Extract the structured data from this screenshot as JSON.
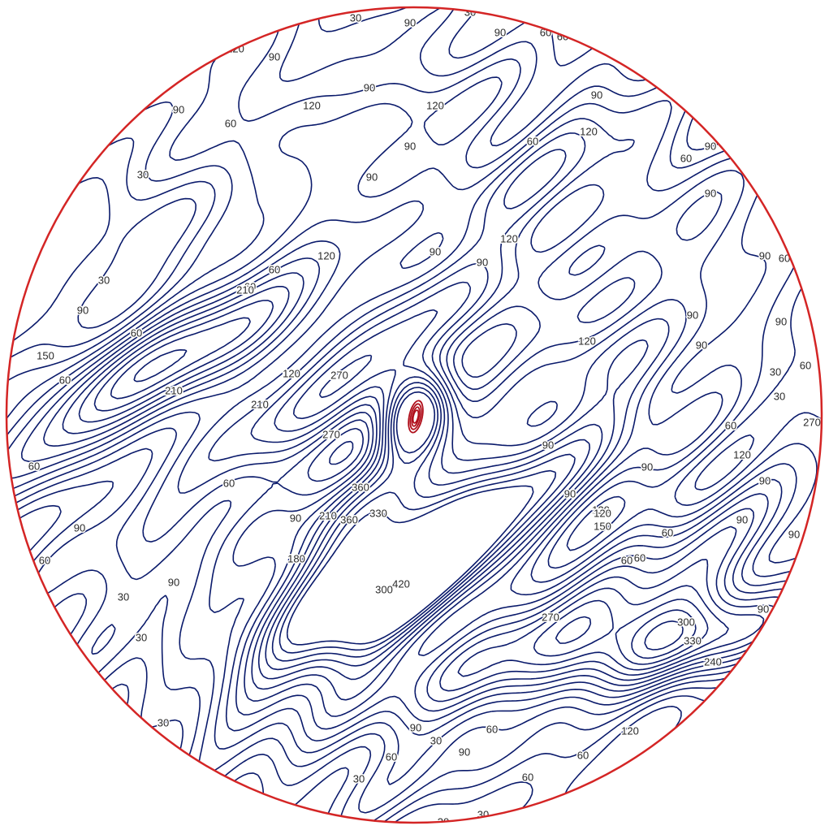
{
  "colors": {
    "contour": "#0a1a6b",
    "boundary": "#d42525",
    "peak": "#b0101c",
    "label": "#2a2a2a",
    "background": "#ffffff"
  },
  "map": {
    "contour_interval": 30,
    "labels": [
      "60",
      "30",
      "90",
      "30",
      "120",
      "120",
      "90",
      "90",
      "60",
      "60",
      "120",
      "120",
      "90",
      "90",
      "60",
      "120",
      "90",
      "90",
      "60",
      "90",
      "30",
      "90",
      "90",
      "60",
      "120",
      "90",
      "90",
      "90",
      "120",
      "120",
      "90",
      "60",
      "60",
      "30",
      "60",
      "90",
      "90",
      "60",
      "120",
      "90",
      "90",
      "30",
      "60",
      "30",
      "270",
      "210",
      "120",
      "60",
      "210",
      "270",
      "150",
      "60",
      "90",
      "210",
      "90",
      "120",
      "90",
      "90",
      "60",
      "60",
      "360",
      "330",
      "180",
      "360",
      "270",
      "420",
      "90",
      "120",
      "150",
      "90",
      "300",
      "270",
      "300",
      "330",
      "240",
      "60",
      "90",
      "60",
      "30",
      "30",
      "60",
      "60",
      "90",
      "120",
      "90",
      "60",
      "30",
      "30",
      "60",
      "60",
      "60",
      "90",
      "90",
      "60",
      "30",
      "30",
      "30",
      "210",
      "60",
      "120",
      "90"
    ]
  }
}
